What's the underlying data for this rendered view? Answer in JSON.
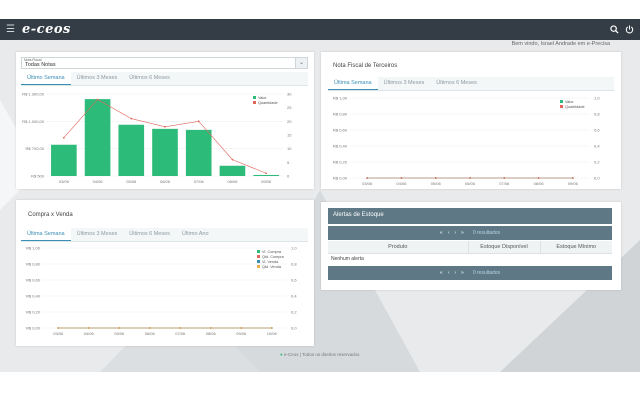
{
  "app": {
    "logo": "e-ceos",
    "welcome": "Bem vindo, Israel Andrade em e-Precisa"
  },
  "icons": {
    "menu": "menu-icon",
    "search": "search-icon",
    "power": "power-icon"
  },
  "colors": {
    "topbar": "#343d46",
    "bar": "#2dbb7a",
    "line": "#e0655a",
    "accent": "#3a8fb5",
    "header": "#5e7886"
  },
  "notas": {
    "select_label": "Nota Fiscal",
    "select_value": "Todas Notas",
    "tabs": [
      "Último Semana",
      "Últimos 3 Meses",
      "Últimos 6 Meses"
    ],
    "legend": [
      "Valor",
      "Quantidade"
    ]
  },
  "terceiros": {
    "title": "Nota Fiscal de Terceiros",
    "tabs": [
      "Última Semana",
      "Últimos 3 Meses",
      "Últimos 6 Meses"
    ],
    "legend": [
      "Valor",
      "Quantidade"
    ]
  },
  "compra": {
    "title": "Compra x Venda",
    "tabs": [
      "Última Semana",
      "Últimos 3 Meses",
      "Últimos 6 Meses",
      "Último Ano"
    ],
    "legend": [
      "Vl. Compra",
      "Qtd. Compra",
      "Vl. Venda",
      "Qtd. Venda"
    ]
  },
  "alertas": {
    "title": "Alertas de Estoque",
    "pager_text": "0 resultados",
    "columns": [
      "Produto",
      "Estoque Disponível",
      "Estoque Mínimo"
    ],
    "empty": "Nenhum alerta"
  },
  "footer": "e-Ceos | Todos os direitos reservados.",
  "chart_data": [
    {
      "type": "bar",
      "categories": [
        "03/06",
        "04/06",
        "05/06",
        "06/06",
        "07/06",
        "08/06",
        "09/06"
      ],
      "series": [
        {
          "name": "Valor",
          "type": "bar",
          "values": [
            805,
            1250,
            1000,
            960,
            950,
            600,
            510
          ]
        },
        {
          "name": "Quantidade",
          "type": "line",
          "values": [
            14,
            28,
            21,
            18,
            20,
            6,
            1
          ]
        }
      ],
      "y_ticks": [
        "R$ 1.300,00",
        "R$ 1.000,00",
        "R$ 700,00",
        "R$ 500"
      ],
      "ylim": [
        500,
        1300
      ],
      "y2_ticks": [
        "30",
        "25",
        "20",
        "15",
        "10",
        "5",
        "0"
      ],
      "y2lim": [
        0,
        30
      ]
    },
    {
      "type": "line",
      "categories": [
        "03/06",
        "04/06",
        "05/06",
        "06/06",
        "07/06",
        "08/06",
        "09/06"
      ],
      "series": [
        {
          "name": "Valor",
          "values": [
            0,
            0,
            0,
            0,
            0,
            0,
            0
          ]
        },
        {
          "name": "Quantidade",
          "values": [
            0,
            0,
            0,
            0,
            0,
            0,
            0
          ]
        }
      ],
      "y_ticks": [
        "R$ 1,00",
        "R$ 0,80",
        "R$ 0,60",
        "R$ 0,40",
        "R$ 0,20",
        "R$ 0,00"
      ],
      "ylim": [
        0,
        1
      ],
      "y2_ticks": [
        "1,0",
        "0,8",
        "0,6",
        "0,4",
        "0,2",
        "0,0"
      ],
      "y2lim": [
        0,
        1
      ]
    },
    {
      "type": "line",
      "categories": [
        "03/06",
        "04/06",
        "05/06",
        "06/06",
        "07/06",
        "08/06",
        "09/06",
        "10/06"
      ],
      "series": [
        {
          "name": "Vl. Compra",
          "values": [
            0,
            0,
            0,
            0,
            0,
            0,
            0,
            0
          ]
        },
        {
          "name": "Qtd. Compra",
          "values": [
            0,
            0,
            0,
            0,
            0,
            0,
            0,
            0
          ]
        },
        {
          "name": "Vl. Venda",
          "values": [
            0,
            0,
            0,
            0,
            0,
            0,
            0,
            0
          ]
        },
        {
          "name": "Qtd. Venda",
          "values": [
            0,
            0,
            0,
            0,
            0,
            0,
            0,
            0
          ]
        }
      ],
      "y_ticks": [
        "R$ 1,00",
        "R$ 0,80",
        "R$ 0,60",
        "R$ 0,40",
        "R$ 0,20",
        "R$ 0,00"
      ],
      "ylim": [
        0,
        1
      ],
      "y2_ticks": [
        "1,0",
        "0,8",
        "0,6",
        "0,4",
        "0,2",
        "0,0"
      ],
      "y2lim": [
        0,
        1
      ]
    }
  ]
}
